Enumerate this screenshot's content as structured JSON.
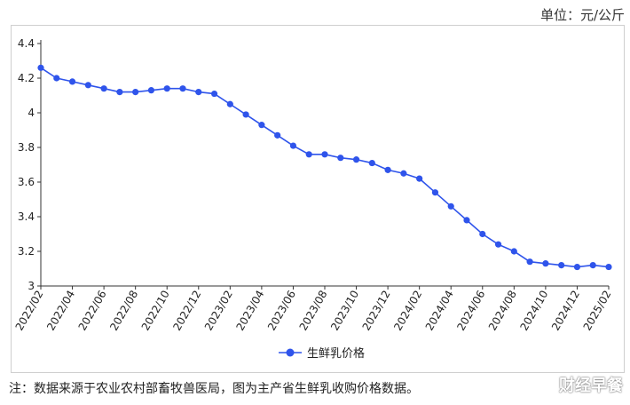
{
  "unit_label": "单位：元/公斤",
  "note": "注：数据来源于农业农村部畜牧兽医局，图为主产省生鲜乳收购价格数据。",
  "watermark": "财经早餐",
  "colors": {
    "series": "#2f54eb",
    "axis": "#333333",
    "frame": "#cfcfcf"
  },
  "chart_data": {
    "type": "line",
    "title": "",
    "xlabel": "",
    "ylabel": "",
    "ylim": [
      3,
      4.4
    ],
    "yticks": [
      3,
      3.2,
      3.4,
      3.6,
      3.8,
      4,
      4.2,
      4.4
    ],
    "ytick_labels": [
      "3",
      "3.2",
      "3.4",
      "3.6",
      "3.8",
      "4",
      "4.2",
      "4.4"
    ],
    "grid": false,
    "legend": "bottom-center",
    "x": [
      "2022/02",
      "2022/03",
      "2022/04",
      "2022/05",
      "2022/06",
      "2022/07",
      "2022/08",
      "2022/09",
      "2022/10",
      "2022/11",
      "2022/12",
      "2023/01",
      "2023/02",
      "2023/03",
      "2023/04",
      "2023/05",
      "2023/06",
      "2023/07",
      "2023/08",
      "2023/09",
      "2023/10",
      "2023/11",
      "2023/12",
      "2024/01",
      "2024/02",
      "2024/03",
      "2024/04",
      "2024/05",
      "2024/06",
      "2024/07",
      "2024/08",
      "2024/09",
      "2024/10",
      "2024/11",
      "2024/12",
      "2025/01",
      "2025/02"
    ],
    "xtick_labels": [
      "2022/02",
      "2022/04",
      "2022/06",
      "2022/08",
      "2022/10",
      "2022/12",
      "2023/02",
      "2023/04",
      "2023/06",
      "2023/08",
      "2023/10",
      "2023/12",
      "2024/02",
      "2024/04",
      "2024/06",
      "2024/08",
      "2024/10",
      "2024/12",
      "2025/02"
    ],
    "series": [
      {
        "name": "生鲜乳价格",
        "values": [
          4.26,
          4.2,
          4.18,
          4.16,
          4.14,
          4.12,
          4.12,
          4.13,
          4.14,
          4.14,
          4.12,
          4.11,
          4.05,
          3.99,
          3.93,
          3.87,
          3.81,
          3.76,
          3.76,
          3.74,
          3.73,
          3.71,
          3.67,
          3.65,
          3.62,
          3.54,
          3.46,
          3.38,
          3.3,
          3.24,
          3.2,
          3.14,
          3.13,
          3.12,
          3.11,
          3.12,
          3.11
        ]
      }
    ]
  }
}
